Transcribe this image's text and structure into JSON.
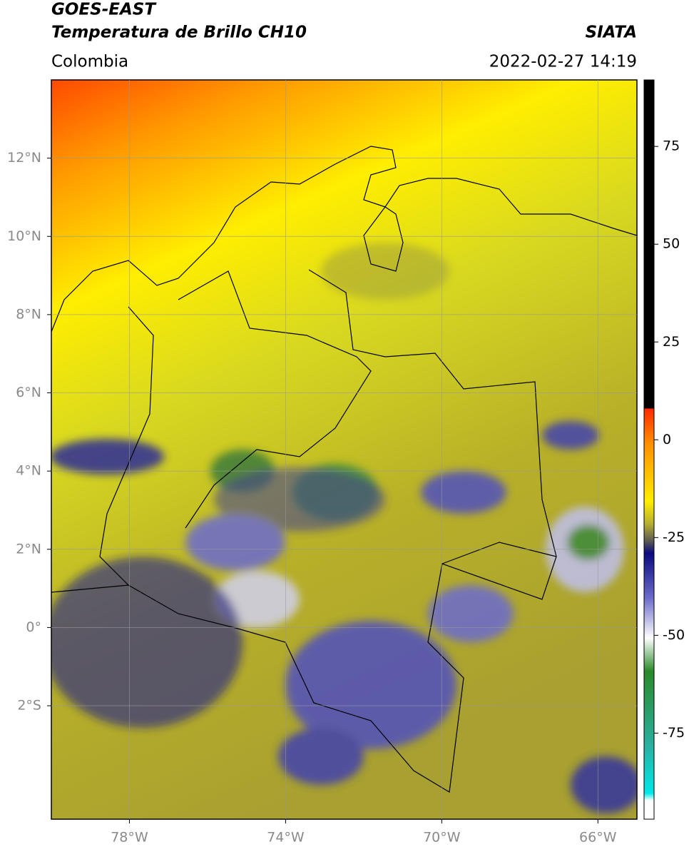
{
  "header": {
    "title": "GOES-EAST",
    "subtitle": "Temperatura de Brillo CH10",
    "source": "SIATA",
    "region": "Colombia",
    "datetime": "2022-02-27 14:19"
  },
  "map": {
    "lon_range": [
      -80,
      -65
    ],
    "lat_range": [
      -4.9,
      14
    ],
    "lat_ticks": [
      {
        "value": 12,
        "label": "12°N"
      },
      {
        "value": 10,
        "label": "10°N"
      },
      {
        "value": 8,
        "label": "8°N"
      },
      {
        "value": 6,
        "label": "6°N"
      },
      {
        "value": 4,
        "label": "4°N"
      },
      {
        "value": 2,
        "label": "2°N"
      },
      {
        "value": 0,
        "label": "0°"
      },
      {
        "value": -2,
        "label": "2°S"
      }
    ],
    "lon_ticks": [
      {
        "value": -78,
        "label": "78°W"
      },
      {
        "value": -74,
        "label": "74°W"
      },
      {
        "value": -70,
        "label": "70°W"
      },
      {
        "value": -66,
        "label": "66°W"
      }
    ]
  },
  "colorbar": {
    "range": [
      -97,
      92
    ],
    "ticks": [
      75,
      50,
      25,
      0,
      -25,
      -50,
      -75
    ]
  }
}
